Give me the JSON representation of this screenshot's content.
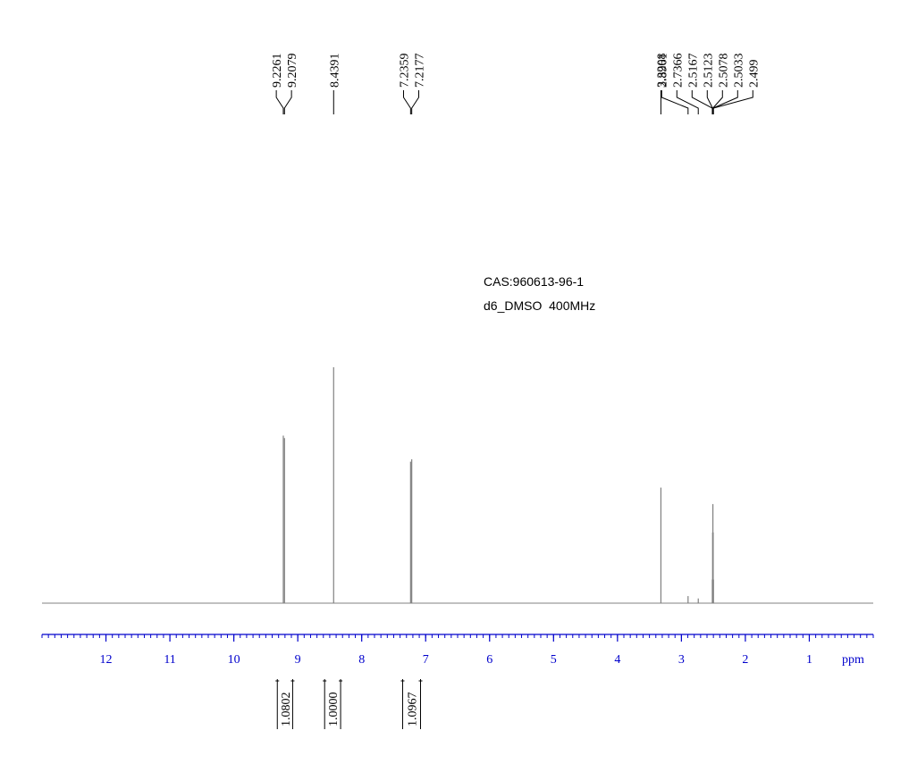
{
  "chart_data": {
    "type": "spectrum",
    "annotations": [
      "CAS:960613-96-1",
      "d6_DMSO  400MHz"
    ],
    "x_label": "ppm",
    "xlim": [
      13,
      0
    ],
    "xticks": [
      12,
      11,
      10,
      9,
      8,
      7,
      6,
      5,
      4,
      3,
      2,
      1
    ],
    "ylim": [
      0,
      1
    ],
    "color": "#808080",
    "axis_color": "#0000cc",
    "peaks": {
      "x": [
        9.2261,
        9.2079,
        8.4391,
        7.2359,
        7.2177,
        3.3208,
        2.8961,
        2.7366,
        2.5167,
        2.5123,
        2.5078,
        2.5033,
        2.499
      ],
      "values": [
        0.71,
        0.7,
        1,
        0.6,
        0.61,
        0.49,
        0.03,
        0.02,
        0.1,
        0.3,
        0.42,
        0.3,
        0.1
      ]
    },
    "integrals": [
      {
        "from": 9.32,
        "to": 9.08,
        "value": 1.0802
      },
      {
        "from": 8.58,
        "to": 8.33,
        "value": {
          "value": 1,
          "label": "1.0000"
        }
      },
      {
        "from": 7.36,
        "to": 7.08,
        "value": 1.0967
      }
    ]
  }
}
